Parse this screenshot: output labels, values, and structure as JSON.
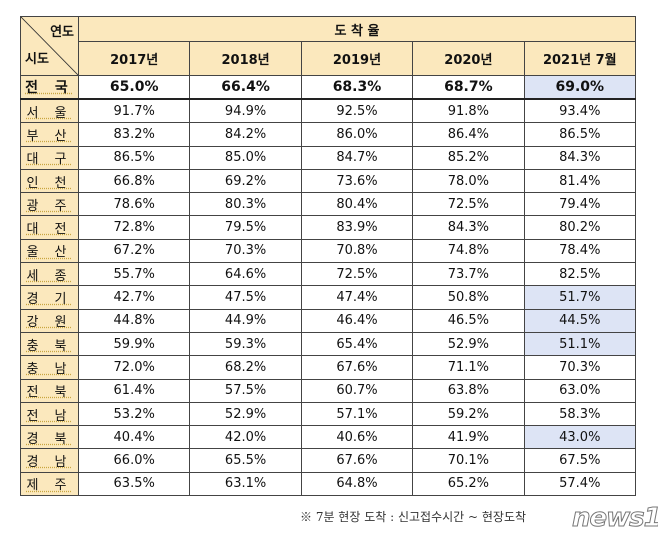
{
  "chart_data": {
    "type": "table",
    "corner": {
      "column_header": "연도",
      "row_header": "시도"
    },
    "group_header": "도 착 율",
    "columns": [
      "2017년",
      "2018년",
      "2019년",
      "2020년",
      "2021년 7월"
    ],
    "rows": [
      {
        "region": "전 국",
        "values": [
          "65.0%",
          "66.4%",
          "68.3%",
          "68.7%",
          "69.0%"
        ],
        "highlight_last": true
      },
      {
        "region": "서 울",
        "values": [
          "91.7%",
          "94.9%",
          "92.5%",
          "91.8%",
          "93.4%"
        ],
        "highlight_last": false
      },
      {
        "region": "부 산",
        "values": [
          "83.2%",
          "84.2%",
          "86.0%",
          "86.4%",
          "86.5%"
        ],
        "highlight_last": false
      },
      {
        "region": "대 구",
        "values": [
          "86.5%",
          "85.0%",
          "84.7%",
          "85.2%",
          "84.3%"
        ],
        "highlight_last": false
      },
      {
        "region": "인 천",
        "values": [
          "66.8%",
          "69.2%",
          "73.6%",
          "78.0%",
          "81.4%"
        ],
        "highlight_last": false
      },
      {
        "region": "광 주",
        "values": [
          "78.6%",
          "80.3%",
          "80.4%",
          "72.5%",
          "79.4%"
        ],
        "highlight_last": false
      },
      {
        "region": "대 전",
        "values": [
          "72.8%",
          "79.5%",
          "83.9%",
          "84.3%",
          "80.2%"
        ],
        "highlight_last": false
      },
      {
        "region": "울 산",
        "values": [
          "67.2%",
          "70.3%",
          "70.8%",
          "74.8%",
          "78.4%"
        ],
        "highlight_last": false
      },
      {
        "region": "세 종",
        "values": [
          "55.7%",
          "64.6%",
          "72.5%",
          "73.7%",
          "82.5%"
        ],
        "highlight_last": false
      },
      {
        "region": "경 기",
        "values": [
          "42.7%",
          "47.5%",
          "47.4%",
          "50.8%",
          "51.7%"
        ],
        "highlight_last": true
      },
      {
        "region": "강 원",
        "values": [
          "44.8%",
          "44.9%",
          "46.4%",
          "46.5%",
          "44.5%"
        ],
        "highlight_last": true
      },
      {
        "region": "충 북",
        "values": [
          "59.9%",
          "59.3%",
          "65.4%",
          "52.9%",
          "51.1%"
        ],
        "highlight_last": true
      },
      {
        "region": "충 남",
        "values": [
          "72.0%",
          "68.2%",
          "67.6%",
          "71.1%",
          "70.3%"
        ],
        "highlight_last": false
      },
      {
        "region": "전 북",
        "values": [
          "61.4%",
          "57.5%",
          "60.7%",
          "63.8%",
          "63.0%"
        ],
        "highlight_last": false
      },
      {
        "region": "전 남",
        "values": [
          "53.2%",
          "52.9%",
          "57.1%",
          "59.2%",
          "58.3%"
        ],
        "highlight_last": false
      },
      {
        "region": "경 북",
        "values": [
          "40.4%",
          "42.0%",
          "40.6%",
          "41.9%",
          "43.0%"
        ],
        "highlight_last": true
      },
      {
        "region": "경 남",
        "values": [
          "66.0%",
          "65.5%",
          "67.6%",
          "70.1%",
          "67.5%"
        ],
        "highlight_last": false
      },
      {
        "region": "제 주",
        "values": [
          "63.5%",
          "63.1%",
          "64.8%",
          "65.2%",
          "57.4%"
        ],
        "highlight_last": false
      }
    ],
    "colors": {
      "header_bg": "#fbe8bd",
      "highlight_bg": "#dde4f5"
    }
  },
  "footnote": "※ 7분 현장 도착 : 신고접수시간 ~ 현장도착",
  "watermark": "news1"
}
